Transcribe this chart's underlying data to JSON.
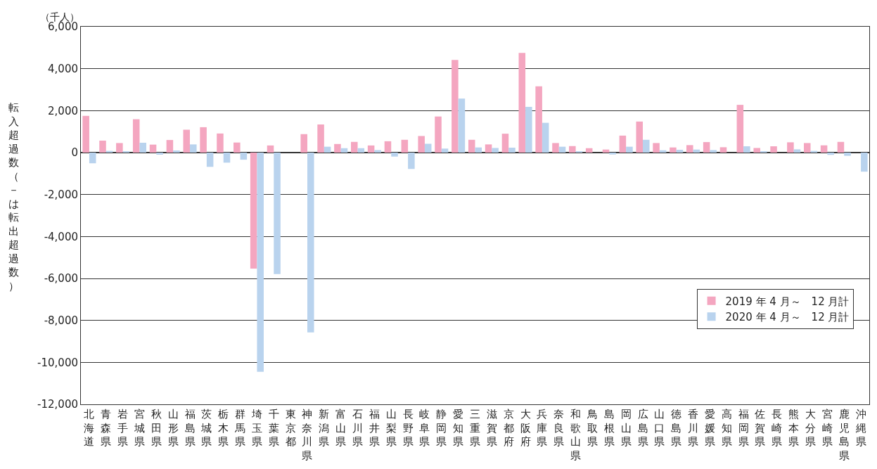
{
  "chart_data": {
    "type": "bar",
    "ylabel": "転入超過数（－は転出超過数）",
    "annotations": [
      "（千人）"
    ],
    "categories": [
      "北海道",
      "青森県",
      "岩手県",
      "宮城県",
      "秋田県",
      "山形県",
      "福島県",
      "茨城県",
      "栃木県",
      "群馬県",
      "埼玉県",
      "千葉県",
      "東京都",
      "神奈川県",
      "新潟県",
      "富山県",
      "石川県",
      "福井県",
      "山梨県",
      "長野県",
      "岐阜県",
      "静岡県",
      "愛知県",
      "三重県",
      "滋賀県",
      "京都府",
      "大阪府",
      "兵庫県",
      "奈良県",
      "和歌山県",
      "鳥取県",
      "島根県",
      "岡山県",
      "広島県",
      "山口県",
      "徳島県",
      "香川県",
      "愛媛県",
      "高知県",
      "福岡県",
      "佐賀県",
      "長崎県",
      "熊本県",
      "大分県",
      "宮崎県",
      "鹿児島県",
      "沖縄県"
    ],
    "series": [
      {
        "name": "2019 年 4 月～　12 月計",
        "color": "#f4a6c0",
        "values": [
          1750,
          570,
          455,
          1590,
          380,
          600,
          1090,
          1210,
          910,
          480,
          -5530,
          340,
          null,
          880,
          1340,
          410,
          510,
          340,
          540,
          610,
          790,
          1720,
          4420,
          610,
          390,
          900,
          4750,
          3160,
          455,
          310,
          210,
          145,
          810,
          1480,
          455,
          245,
          355,
          500,
          255,
          2275,
          220,
          300,
          490,
          455,
          345,
          510,
          null
        ]
      },
      {
        "name": "2020 年 4 月～　12 月計",
        "color": "#b9d3ee",
        "values": [
          -510,
          80,
          45,
          470,
          -100,
          100,
          390,
          -680,
          -480,
          -340,
          -10450,
          -5790,
          null,
          -8570,
          280,
          210,
          210,
          120,
          -190,
          -780,
          420,
          190,
          2575,
          245,
          220,
          235,
          2180,
          1420,
          280,
          55,
          null,
          -90,
          280,
          610,
          110,
          135,
          145,
          120,
          null,
          300,
          45,
          null,
          155,
          80,
          -110,
          -155,
          -910
        ]
      }
    ],
    "ylim": [
      -12000,
      6000
    ],
    "yticks": [
      {
        "value": -12000,
        "label": "-12,000"
      },
      {
        "value": -10000,
        "label": "-10,000"
      },
      {
        "value": -8000,
        "label": "-8,000"
      },
      {
        "value": -6000,
        "label": "-6,000"
      },
      {
        "value": -4000,
        "label": "-4,000"
      },
      {
        "value": -2000,
        "label": "-2,000"
      },
      0,
      {
        "value": 2000,
        "label": "2,000"
      },
      {
        "value": 4000,
        "label": "4,000"
      },
      {
        "value": 6000,
        "label": "6,000"
      }
    ],
    "grid": "y",
    "legend": "bottom right"
  }
}
